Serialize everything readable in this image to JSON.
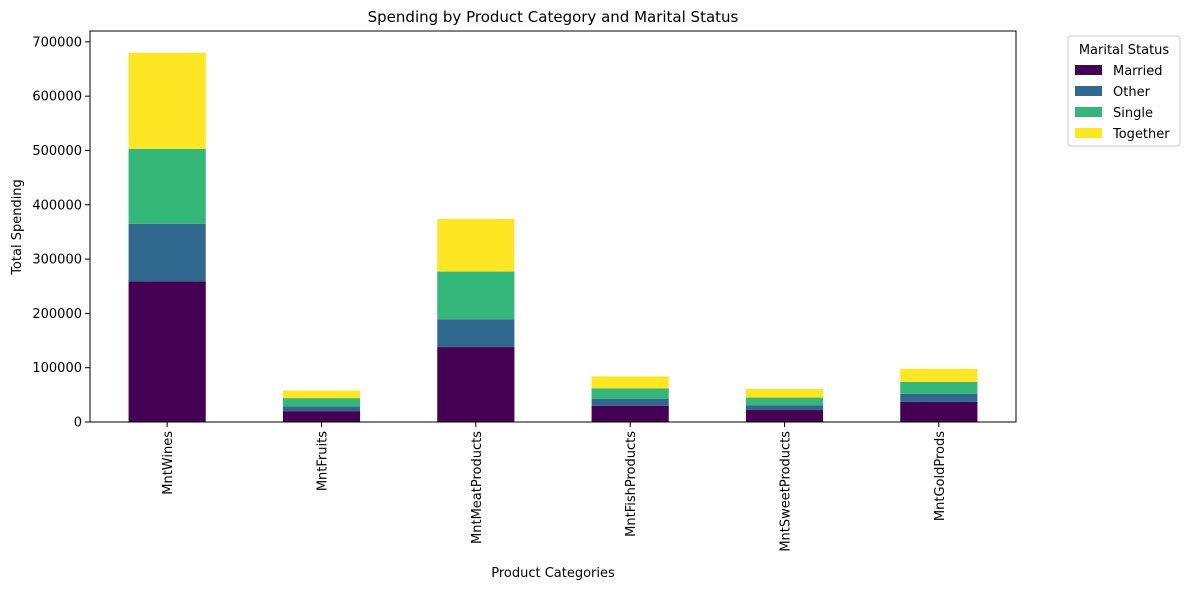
{
  "chart_data": {
    "type": "bar",
    "stacked": true,
    "title": "Spending by Product Category and Marital Status",
    "xlabel": "Product Categories",
    "ylabel": "Total Spending",
    "ylim": [
      0,
      720000
    ],
    "yticks": [
      0,
      100000,
      200000,
      300000,
      400000,
      500000,
      600000,
      700000
    ],
    "categories": [
      "MntWines",
      "MntFruits",
      "MntMeatProducts",
      "MntFishProducts",
      "MntSweetProducts",
      "MntGoldProds"
    ],
    "series": [
      {
        "name": "Married",
        "color": "#440154",
        "values": [
          259000,
          20000,
          138000,
          30000,
          22000,
          37000
        ]
      },
      {
        "name": "Other",
        "color": "#31688e",
        "values": [
          106000,
          9000,
          51000,
          13000,
          9000,
          15000
        ]
      },
      {
        "name": "Single",
        "color": "#35b779",
        "values": [
          138000,
          15000,
          88000,
          19000,
          14000,
          22000
        ]
      },
      {
        "name": "Together",
        "color": "#fde725",
        "values": [
          177000,
          14000,
          97000,
          22000,
          16000,
          24000
        ]
      }
    ],
    "legend": {
      "title": "Marital Status",
      "placement": "outside-top-right"
    },
    "grid": false
  }
}
